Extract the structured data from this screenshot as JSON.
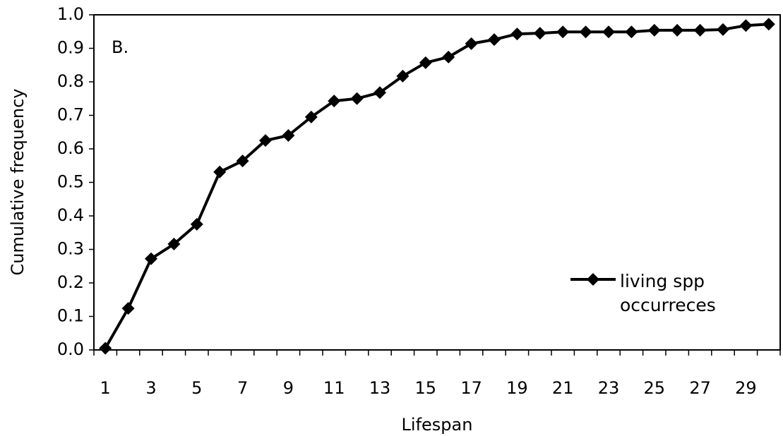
{
  "chart_data": {
    "type": "line",
    "annotation": "B.",
    "x_label": "Lifespan",
    "y_label": "Cumulative frequency",
    "categories": [
      "1",
      null,
      "3",
      null,
      "5",
      null,
      "7",
      null,
      "9",
      null,
      "11",
      null,
      "13",
      null,
      "15",
      null,
      "17",
      null,
      "19",
      null,
      "21",
      null,
      "23",
      null,
      "25",
      null,
      "27",
      null,
      "29",
      null
    ],
    "series": [
      {
        "name": "living spp occurreces",
        "color": "#000000",
        "values": [
          0.005,
          0.124,
          0.272,
          0.316,
          0.375,
          0.531,
          0.564,
          0.625,
          0.64,
          0.695,
          0.743,
          0.75,
          0.768,
          0.817,
          0.857,
          0.874,
          0.914,
          0.926,
          0.943,
          0.945,
          0.949,
          0.949,
          0.949,
          0.949,
          0.954,
          0.954,
          0.954,
          0.956,
          0.968,
          0.972
        ]
      }
    ],
    "ylim": [
      0,
      1
    ],
    "yticks": [
      {
        "value": 0,
        "label": "0.0"
      },
      0.1,
      0.2,
      0.3,
      0.4,
      0.5,
      0.6,
      0.7,
      0.8,
      0.9,
      {
        "value": 1,
        "label": "1.0"
      }
    ],
    "legend": "right"
  }
}
